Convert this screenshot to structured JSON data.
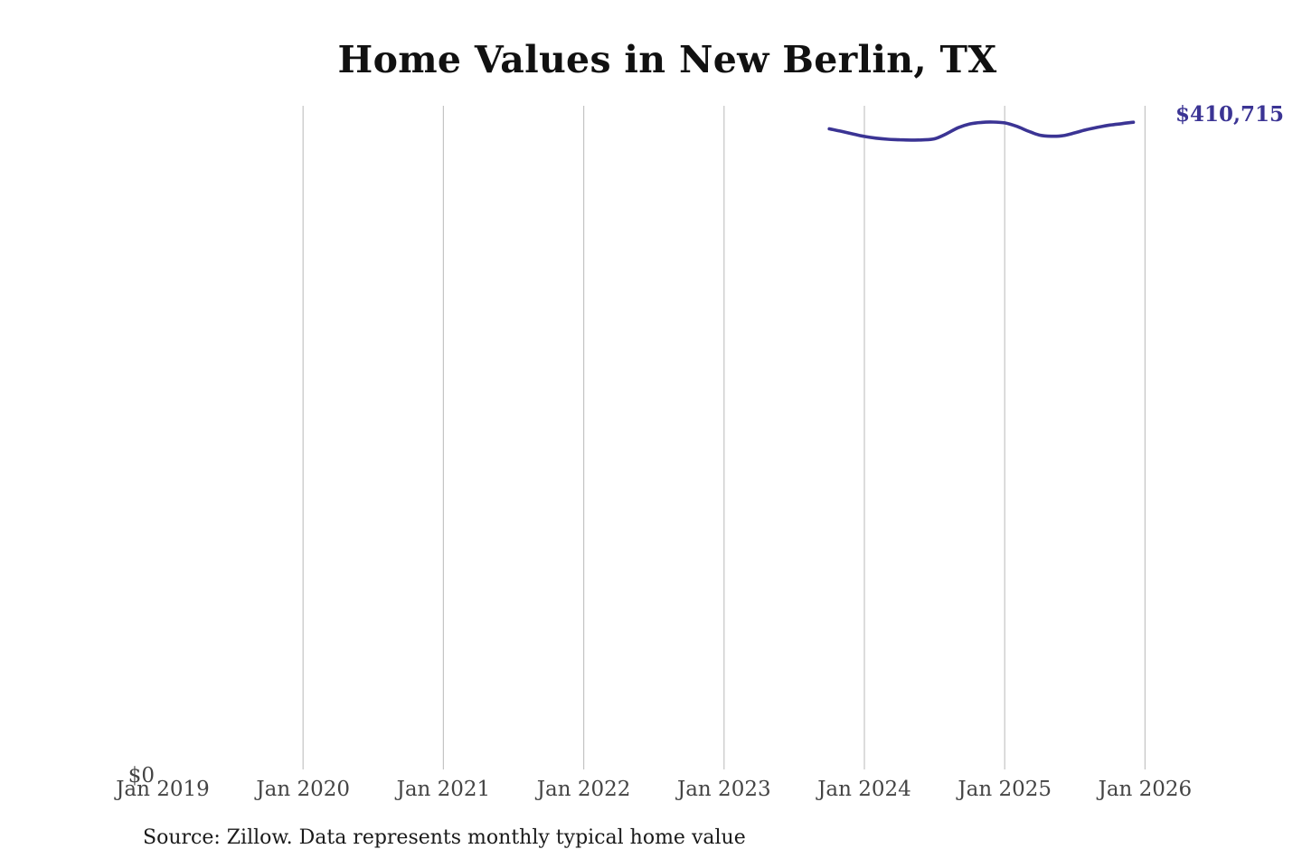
{
  "chart_data": {
    "type": "line",
    "title": "Home Values in New Berlin, TX",
    "xlabel": "",
    "ylabel": "",
    "x_tick_labels": [
      "Jan 2019",
      "Jan 2020",
      "Jan 2021",
      "Jan 2022",
      "Jan 2023",
      "Jan 2024",
      "Jan 2025",
      "Jan 2026"
    ],
    "y_tick_labels": [
      "$0"
    ],
    "ylim": [
      0,
      420000
    ],
    "grid": "vertical",
    "legend": "none",
    "end_label": "$410,715",
    "series": [
      {
        "color": "#3b3494",
        "points": [
          {
            "x": "2023-10",
            "y": 406500
          },
          {
            "x": "2023-11",
            "y": 405000
          },
          {
            "x": "2023-12",
            "y": 403300
          },
          {
            "x": "2024-01",
            "y": 401700
          },
          {
            "x": "2024-02",
            "y": 400600
          },
          {
            "x": "2024-03",
            "y": 399900
          },
          {
            "x": "2024-04",
            "y": 399600
          },
          {
            "x": "2024-05",
            "y": 399400
          },
          {
            "x": "2024-06",
            "y": 399500
          },
          {
            "x": "2024-07",
            "y": 400200
          },
          {
            "x": "2024-08",
            "y": 403300
          },
          {
            "x": "2024-09",
            "y": 407200
          },
          {
            "x": "2024-10",
            "y": 409600
          },
          {
            "x": "2024-11",
            "y": 410600
          },
          {
            "x": "2024-12",
            "y": 410800
          },
          {
            "x": "2025-01",
            "y": 410300
          },
          {
            "x": "2025-02",
            "y": 408200
          },
          {
            "x": "2025-03",
            "y": 405100
          },
          {
            "x": "2025-04",
            "y": 402500
          },
          {
            "x": "2025-05",
            "y": 401800
          },
          {
            "x": "2025-06",
            "y": 402200
          },
          {
            "x": "2025-07",
            "y": 404000
          },
          {
            "x": "2025-08",
            "y": 406000
          },
          {
            "x": "2025-09",
            "y": 407600
          },
          {
            "x": "2025-10",
            "y": 408900
          },
          {
            "x": "2025-11",
            "y": 409800
          },
          {
            "x": "2025-12",
            "y": 410715
          }
        ]
      }
    ]
  },
  "source_note": "Source: Zillow. Data represents monthly typical home value"
}
